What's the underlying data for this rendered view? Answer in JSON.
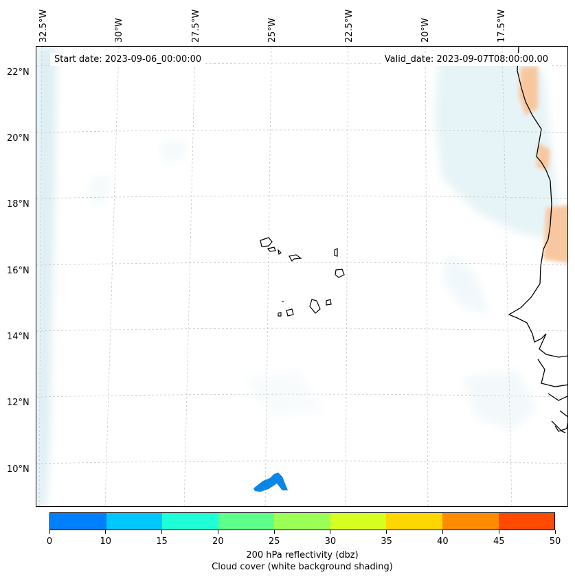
{
  "map": {
    "start_date": "Start date: 2023-09-06_00:00:00",
    "valid_date": "Valid_date: 2023-09-07T08:00:00.00",
    "lon_labels": [
      "32.5°W",
      "30°W",
      "27.5°W",
      "25°W",
      "22.5°W",
      "20°W",
      "17.5°W"
    ],
    "lat_labels": [
      "22°N",
      "20°N",
      "18°N",
      "16°N",
      "14°N",
      "12°N",
      "10°N"
    ],
    "colors": {
      "coastline": "#000000",
      "cloud_shading": "#d8ecf2",
      "high_reflectivity": "#f8c7a0",
      "reflectivity_blob": "#0a86e6",
      "gridline": "#c8c8c8"
    }
  },
  "colorbar": {
    "ticks": [
      "0",
      "10",
      "15",
      "20",
      "25",
      "30",
      "35",
      "40",
      "45",
      "50"
    ],
    "colors": [
      "#0080ff",
      "#00c8ff",
      "#1effd8",
      "#5eff8a",
      "#9bff55",
      "#d7ff1f",
      "#ffd700",
      "#ff8c00",
      "#ff4a00"
    ],
    "title": "200 hPa reflectivity (dbz)",
    "subtitle": "Cloud cover (white background shading)"
  }
}
